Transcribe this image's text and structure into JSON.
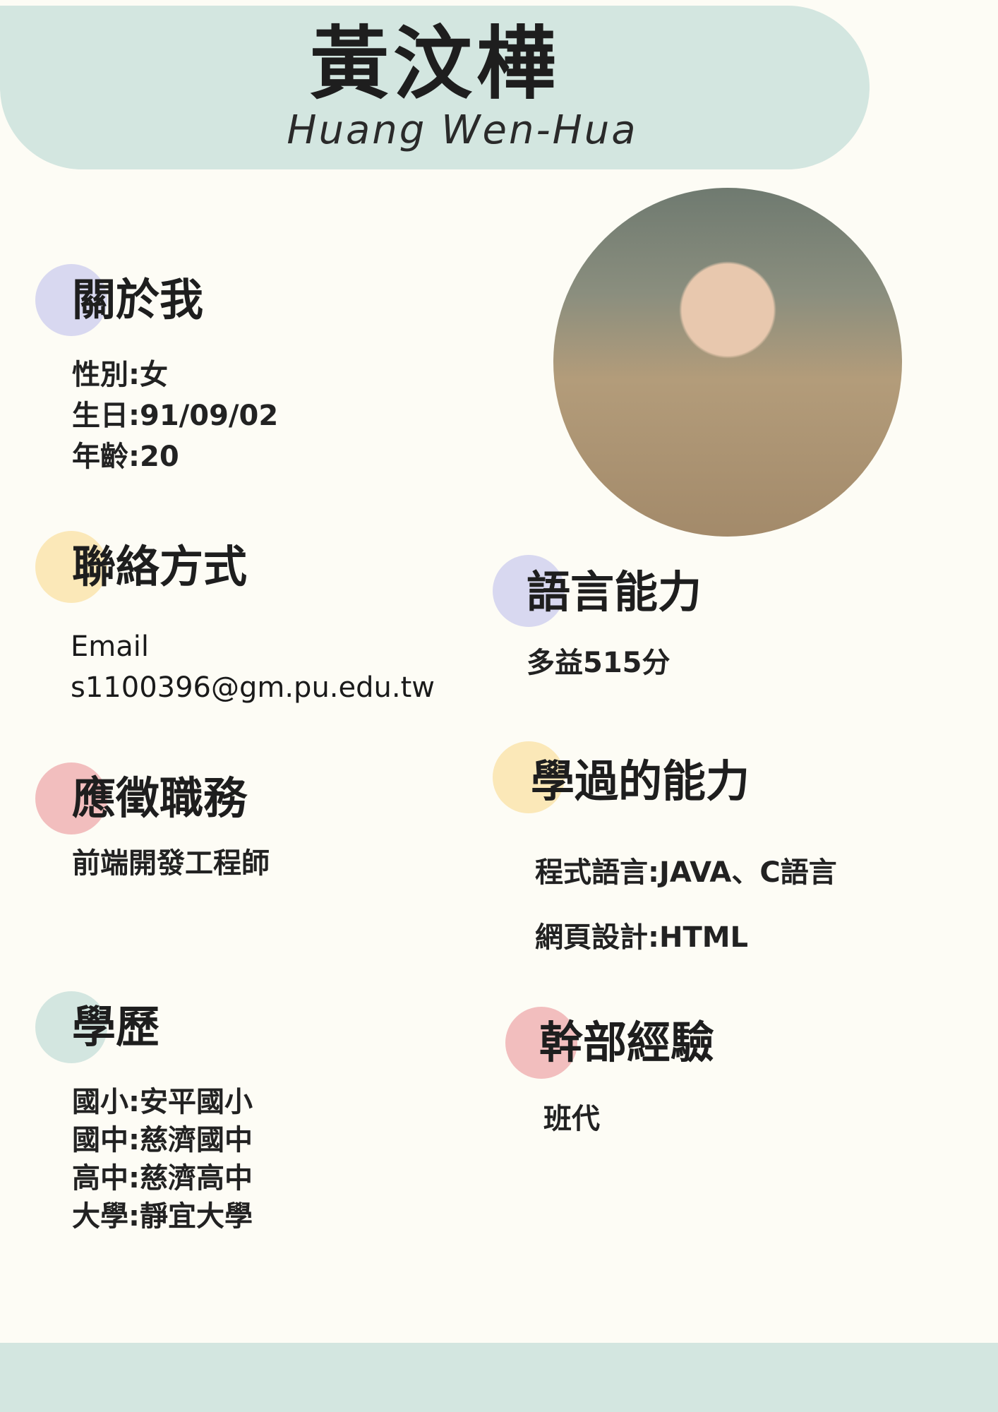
{
  "header": {
    "name_zh": "黃汶樺",
    "name_en": "Huang Wen-Hua"
  },
  "about": {
    "title": "關於我",
    "lines": [
      "性別:女",
      "生日:91/09/02",
      "年齡:20"
    ]
  },
  "contact": {
    "title": "聯絡方式",
    "lines": [
      "Email",
      "s1100396@gm.pu.edu.tw"
    ]
  },
  "position": {
    "title": "應徵職務",
    "lines": [
      "前端開發工程師"
    ]
  },
  "education": {
    "title": "學歷",
    "lines": [
      "國小:安平國小",
      "國中:慈濟國中",
      "高中:慈濟高中",
      "大學:靜宜大學"
    ]
  },
  "language": {
    "title": "語言能力",
    "lines": [
      "多益515分"
    ]
  },
  "skills": {
    "title": "學過的能力",
    "lines": [
      "程式語言:JAVA、C語言",
      "網頁設計:HTML"
    ]
  },
  "leadership": {
    "title": "幹部經驗",
    "lines": [
      "班代"
    ]
  },
  "colors": {
    "background": "#fdfcf5",
    "mint": "#d3e6e0",
    "lavender": "#d8d8f0",
    "yellow": "#fbe8b8",
    "pink": "#f2bebe"
  }
}
